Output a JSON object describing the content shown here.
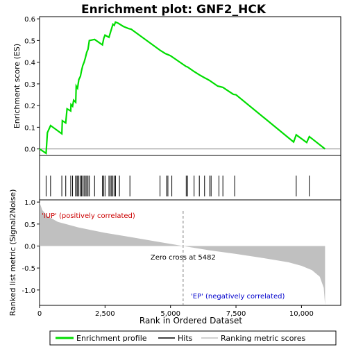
{
  "chart_data": {
    "type": "line",
    "title": "Enrichment plot: GNF2_HCK",
    "xlabel": "Rank in Ordered Dataset",
    "ylabel_top": "Enrichment score (ES)",
    "ylabel_bottom": "Ranked list metric (Signal2Noise)",
    "xlim": [
      0,
      11500
    ],
    "x_ticks": [
      0,
      2500,
      5000,
      7500,
      10000
    ],
    "x_tick_labels": [
      "0",
      "2,500",
      "5,000",
      "7,500",
      "10,000"
    ],
    "es_ylim": [
      -0.03,
      0.61
    ],
    "es_ticks": [
      0.0,
      0.1,
      0.2,
      0.3,
      0.4,
      0.5,
      0.6
    ],
    "es_tick_labels": [
      "0.0",
      "0.1",
      "0.2",
      "0.3",
      "0.4",
      "0.5",
      "0.6"
    ],
    "metric_ylim": [
      -1.35,
      1.05
    ],
    "metric_ticks": [
      1.0,
      0.5,
      0.0,
      -0.5,
      -1.0
    ],
    "metric_tick_labels": [
      "1.0",
      "0.5",
      "0.0",
      "-0.5",
      "-1.0"
    ],
    "series": [
      {
        "name": "Enrichment profile",
        "color": "#00dd00",
        "x": [
          0,
          250,
          300,
          420,
          850,
          870,
          1000,
          1050,
          1190,
          1200,
          1260,
          1300,
          1380,
          1400,
          1450,
          1500,
          1560,
          1600,
          1650,
          1700,
          1750,
          1800,
          1850,
          1900,
          2100,
          2400,
          2450,
          2500,
          2650,
          2700,
          2750,
          2800,
          2850,
          2900,
          3000,
          3200,
          3400,
          3500,
          4600,
          4800,
          4900,
          5000,
          5600,
          5650,
          5900,
          6100,
          6300,
          6400,
          6500,
          6800,
          7000,
          7200,
          7400,
          7500,
          9700,
          9800,
          10200,
          10300,
          10900
        ],
        "values": [
          0.0,
          -0.02,
          0.075,
          0.108,
          0.07,
          0.13,
          0.12,
          0.185,
          0.175,
          0.205,
          0.197,
          0.225,
          0.215,
          0.29,
          0.28,
          0.32,
          0.335,
          0.36,
          0.385,
          0.4,
          0.42,
          0.445,
          0.46,
          0.5,
          0.505,
          0.48,
          0.51,
          0.525,
          0.515,
          0.535,
          0.555,
          0.575,
          0.57,
          0.585,
          0.58,
          0.565,
          0.555,
          0.552,
          0.455,
          0.44,
          0.435,
          0.43,
          0.38,
          0.378,
          0.357,
          0.342,
          0.328,
          0.322,
          0.315,
          0.29,
          0.284,
          0.268,
          0.252,
          0.25,
          0.032,
          0.065,
          0.03,
          0.057,
          0.0
        ]
      }
    ],
    "hits": [
      250,
      420,
      850,
      1000,
      1190,
      1260,
      1380,
      1400,
      1450,
      1500,
      1560,
      1600,
      1650,
      1700,
      1750,
      1800,
      1850,
      1900,
      2100,
      2400,
      2450,
      2500,
      2650,
      2700,
      2750,
      2800,
      2850,
      2900,
      3050,
      3450,
      4600,
      4850,
      4900,
      5050,
      5600,
      5650,
      5900,
      6100,
      6300,
      6500,
      6550,
      6850,
      7000,
      7450,
      9800,
      10300
    ],
    "metric_profile": {
      "x": [
        0,
        100,
        300,
        700,
        1500,
        2500,
        3500,
        4500,
        5482,
        6500,
        7500,
        8500,
        9500,
        10000,
        10400,
        10700,
        10850,
        10900
      ],
      "values": [
        1.0,
        0.82,
        0.68,
        0.55,
        0.42,
        0.3,
        0.2,
        0.1,
        0.0,
        -0.1,
        -0.18,
        -0.27,
        -0.37,
        -0.45,
        -0.55,
        -0.7,
        -0.95,
        -1.35
      ]
    },
    "annotations": {
      "up_label": "'IUP' (positively correlated)",
      "down_label": "'EP' (negatively correlated)",
      "zero_cross_label": "Zero cross at 5482",
      "zero_cross_x": 5482
    },
    "colorbar_segments": [
      {
        "x0": 0,
        "x1": 4200,
        "color": "#e8202a"
      },
      {
        "x0": 4200,
        "x1": 5482,
        "color": "#f4b0e0"
      },
      {
        "x0": 5482,
        "x1": 7600,
        "color": "#c8c8f4"
      },
      {
        "x0": 7600,
        "x1": 8500,
        "color": "#7070e6"
      },
      {
        "x0": 8500,
        "x1": 10100,
        "color": "#4a3ad0"
      },
      {
        "x0": 10100,
        "x1": 10900,
        "color": "#3010b8"
      }
    ],
    "legend": {
      "placement": "bottom",
      "items": [
        {
          "name": "Enrichment profile",
          "color": "#00dd00",
          "style": "line"
        },
        {
          "name": "Hits",
          "color": "#000000",
          "style": "line"
        },
        {
          "name": "Ranking metric scores",
          "color": "#c0c0c0",
          "style": "line"
        }
      ]
    },
    "colors": {
      "es_line": "#00dd00",
      "hits": "#000000",
      "metric_fill": "#c0c0c0",
      "up_text": "#cc0000",
      "down_text": "#0000cc",
      "grid_zero": "#808080"
    }
  }
}
